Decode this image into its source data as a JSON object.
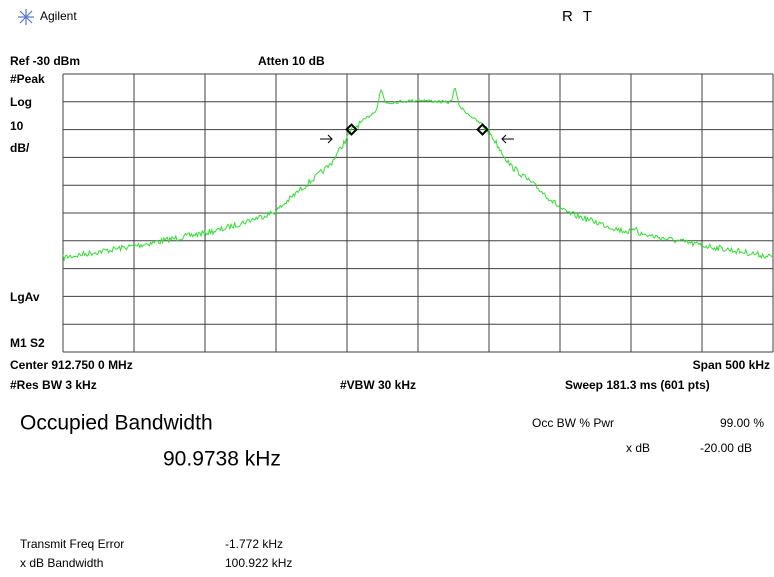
{
  "header": {
    "brand": "Agilent",
    "status": "R T"
  },
  "display": {
    "ref": "Ref -30 dBm",
    "atten": "Atten 10 dB",
    "detector": "#Peak",
    "scale_type": "Log",
    "scale_value": "10",
    "scale_unit": "dB/",
    "average": "LgAv",
    "markers": "M1 S2",
    "center": "Center 912.750 0 MHz",
    "span": "Span 500 kHz",
    "res_bw": "#Res BW 3 kHz",
    "vbw": "#VBW 30 kHz",
    "sweep": "Sweep 181.3 ms (601 pts)"
  },
  "results": {
    "title": "Occupied Bandwidth",
    "value": "90.9738 kHz",
    "occ_bw_pwr_label": "Occ BW % Pwr",
    "occ_bw_pwr_value": "99.00 %",
    "xdb_label": "x dB",
    "xdb_value": "-20.00 dB",
    "freq_error_label": "Transmit Freq Error",
    "freq_error_value": "-1.772 kHz",
    "xdb_bw_label": "x dB Bandwidth",
    "xdb_bw_value": "100.922 kHz"
  }
}
